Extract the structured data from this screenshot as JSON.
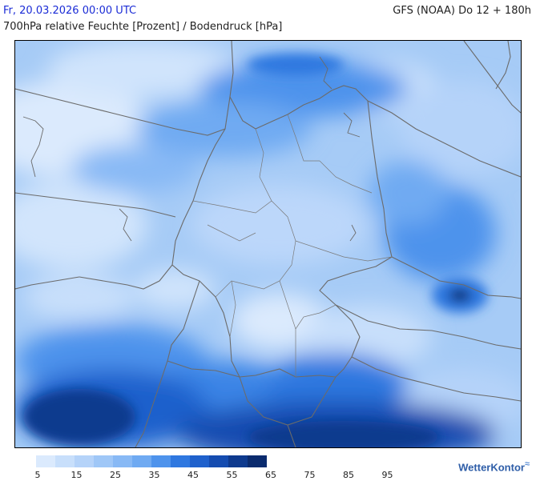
{
  "header": {
    "date": "Fr, 20.03.2026 00:00 UTC",
    "model": "GFS (NOAA) Do 12 + 180h",
    "title": "700hPa relative Feuchte [Prozent] / Bodendruck [hPa]"
  },
  "legend": {
    "tick_labels": [
      "5",
      "15",
      "25",
      "35",
      "45",
      "55",
      "65",
      "75",
      "85",
      "95"
    ],
    "colors": [
      "#dbeafd",
      "#c8dffb",
      "#b5d3f9",
      "#9fc7f7",
      "#88b9f5",
      "#6faaf2",
      "#4e93ec",
      "#2f78e0",
      "#1f61cc",
      "#154cb0",
      "#0e3a8e",
      "#0a2b6e"
    ]
  },
  "brand": {
    "name": "WetterKontor"
  },
  "map": {
    "background_color": "#a6cbf6"
  }
}
